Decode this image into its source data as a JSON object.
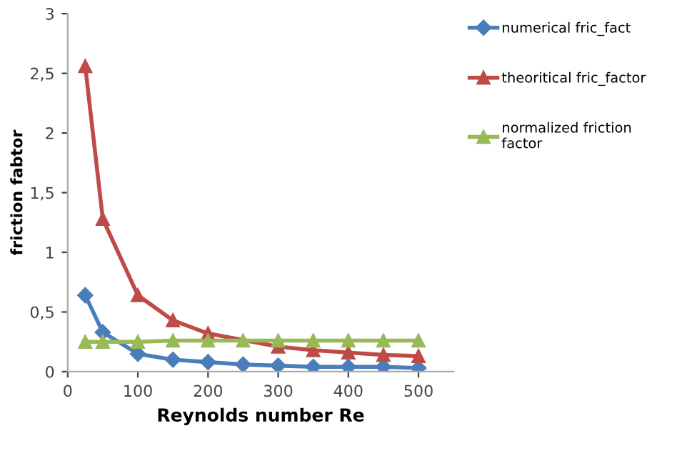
{
  "chart_data": {
    "type": "line",
    "xlabel": "Reynolds number Re",
    "ylabel": "friction fabtor",
    "x": [
      25,
      50,
      100,
      150,
      200,
      250,
      300,
      350,
      400,
      450,
      500
    ],
    "series": [
      {
        "name": "numerical fric_fact",
        "color": "#4a7ebb",
        "marker": "diamond",
        "values": [
          0.64,
          0.33,
          0.15,
          0.1,
          0.08,
          0.06,
          0.05,
          0.04,
          0.04,
          0.04,
          0.03
        ]
      },
      {
        "name": "theoritical fric_factor",
        "color": "#be4b48",
        "marker": "triangle",
        "values": [
          2.56,
          1.28,
          0.64,
          0.43,
          0.32,
          null,
          0.21,
          0.18,
          0.16,
          0.14,
          0.13
        ]
      },
      {
        "name": "normalized friction\nfactor",
        "color": "#98b954",
        "marker": "triangle",
        "values": [
          0.25,
          0.25,
          0.25,
          0.26,
          0.26,
          0.26,
          0.26,
          0.26,
          0.26,
          0.26,
          0.26
        ]
      }
    ],
    "xlim": [
      0,
      550
    ],
    "xticks": [
      0,
      100,
      200,
      300,
      400,
      500
    ],
    "ylim": [
      0,
      3
    ],
    "yticks": [
      0,
      {
        "value": 0.5,
        "label": "0,5"
      },
      1,
      {
        "value": 1.5,
        "label": "1,5"
      },
      2,
      {
        "value": 2.5,
        "label": "2,5"
      },
      3
    ],
    "grid": false,
    "legend": "right"
  }
}
